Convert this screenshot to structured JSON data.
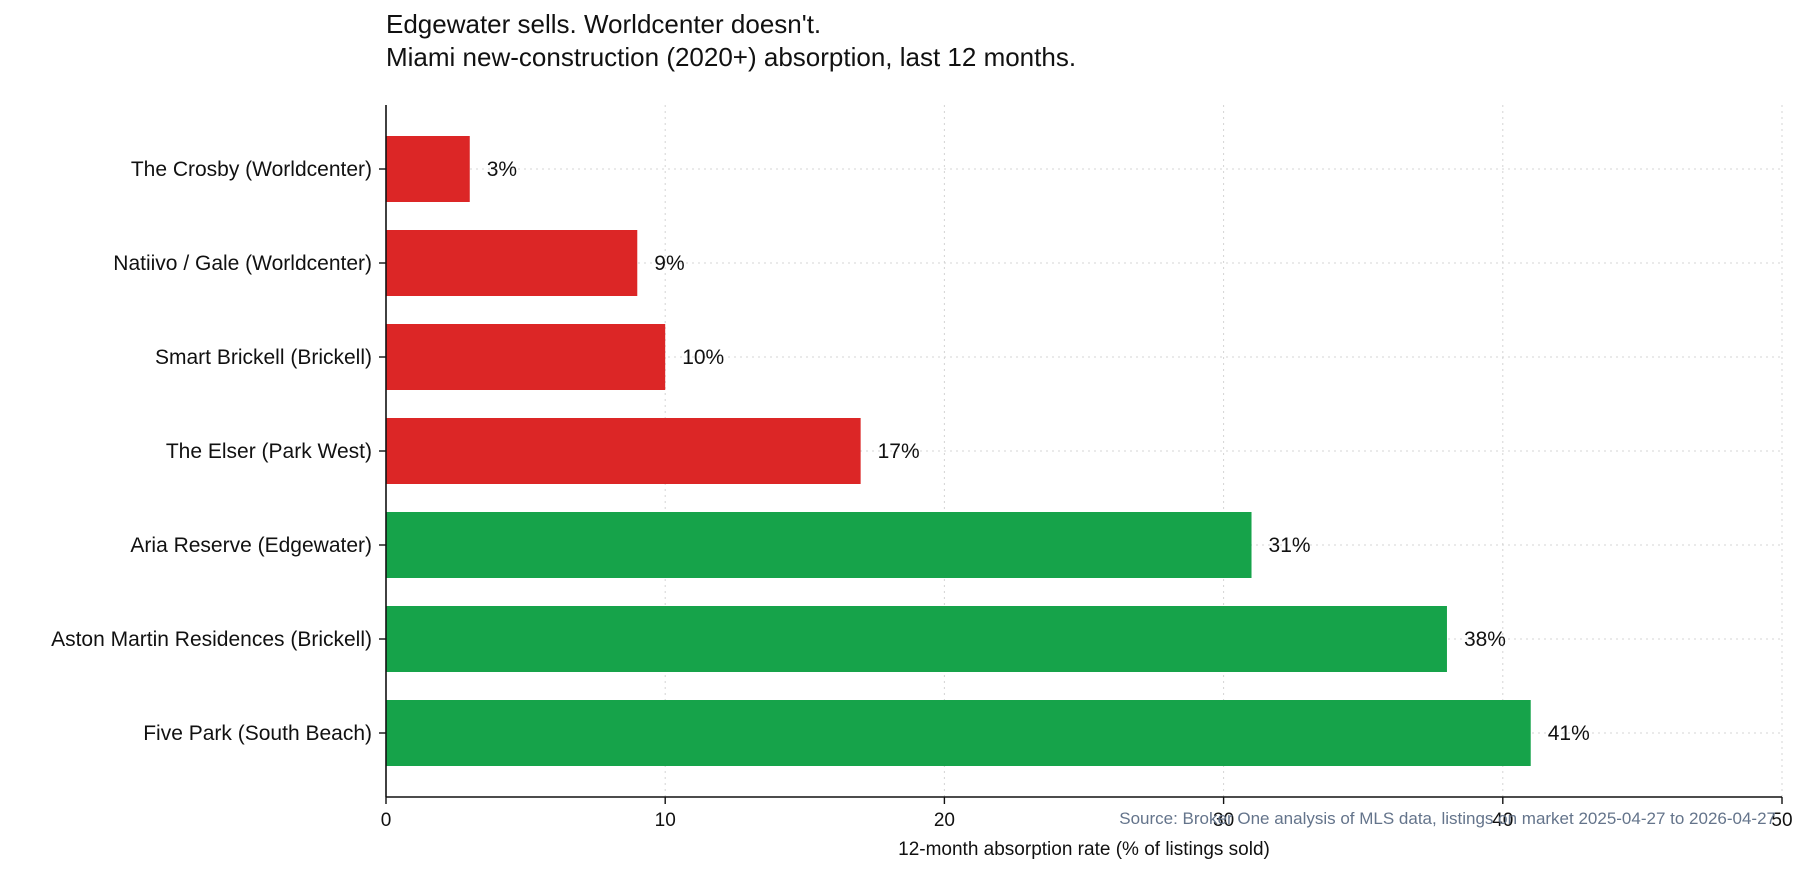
{
  "chart_data": {
    "type": "bar",
    "orientation": "horizontal",
    "title": "Edgewater sells. Worldcenter doesn't.",
    "subtitle": "Miami new-construction (2020+) absorption, last 12 months.",
    "xlabel": "12-month absorption rate (% of listings sold)",
    "ylabel": "",
    "xlim": [
      0,
      50
    ],
    "xticks": [
      0,
      10,
      20,
      30,
      40,
      50
    ],
    "grid": true,
    "categories": [
      "The Crosby  (Worldcenter)",
      "Natiivo / Gale  (Worldcenter)",
      "Smart Brickell  (Brickell)",
      "The Elser  (Park West)",
      "Aria Reserve  (Edgewater)",
      "Aston Martin Residences  (Brickell)",
      "Five Park  (South Beach)"
    ],
    "values": [
      3,
      9,
      10,
      17,
      31,
      38,
      41
    ],
    "data_labels": [
      "3%",
      "9%",
      "10%",
      "17%",
      "31%",
      "38%",
      "41%"
    ],
    "bar_colors": [
      "#dc2626",
      "#dc2626",
      "#dc2626",
      "#dc2626",
      "#16a34a",
      "#16a34a",
      "#16a34a"
    ],
    "source": "Source: Broker One analysis of MLS data, listings on market 2025-04-27 to 2026-04-27"
  }
}
